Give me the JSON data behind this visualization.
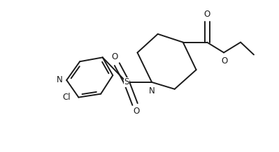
{
  "bg_color": "#ffffff",
  "line_color": "#1a1a1a",
  "line_width": 1.4,
  "font_size": 8.5,
  "xlim": [
    0.0,
    1.75
  ],
  "ylim": [
    0.0,
    1.1
  ]
}
